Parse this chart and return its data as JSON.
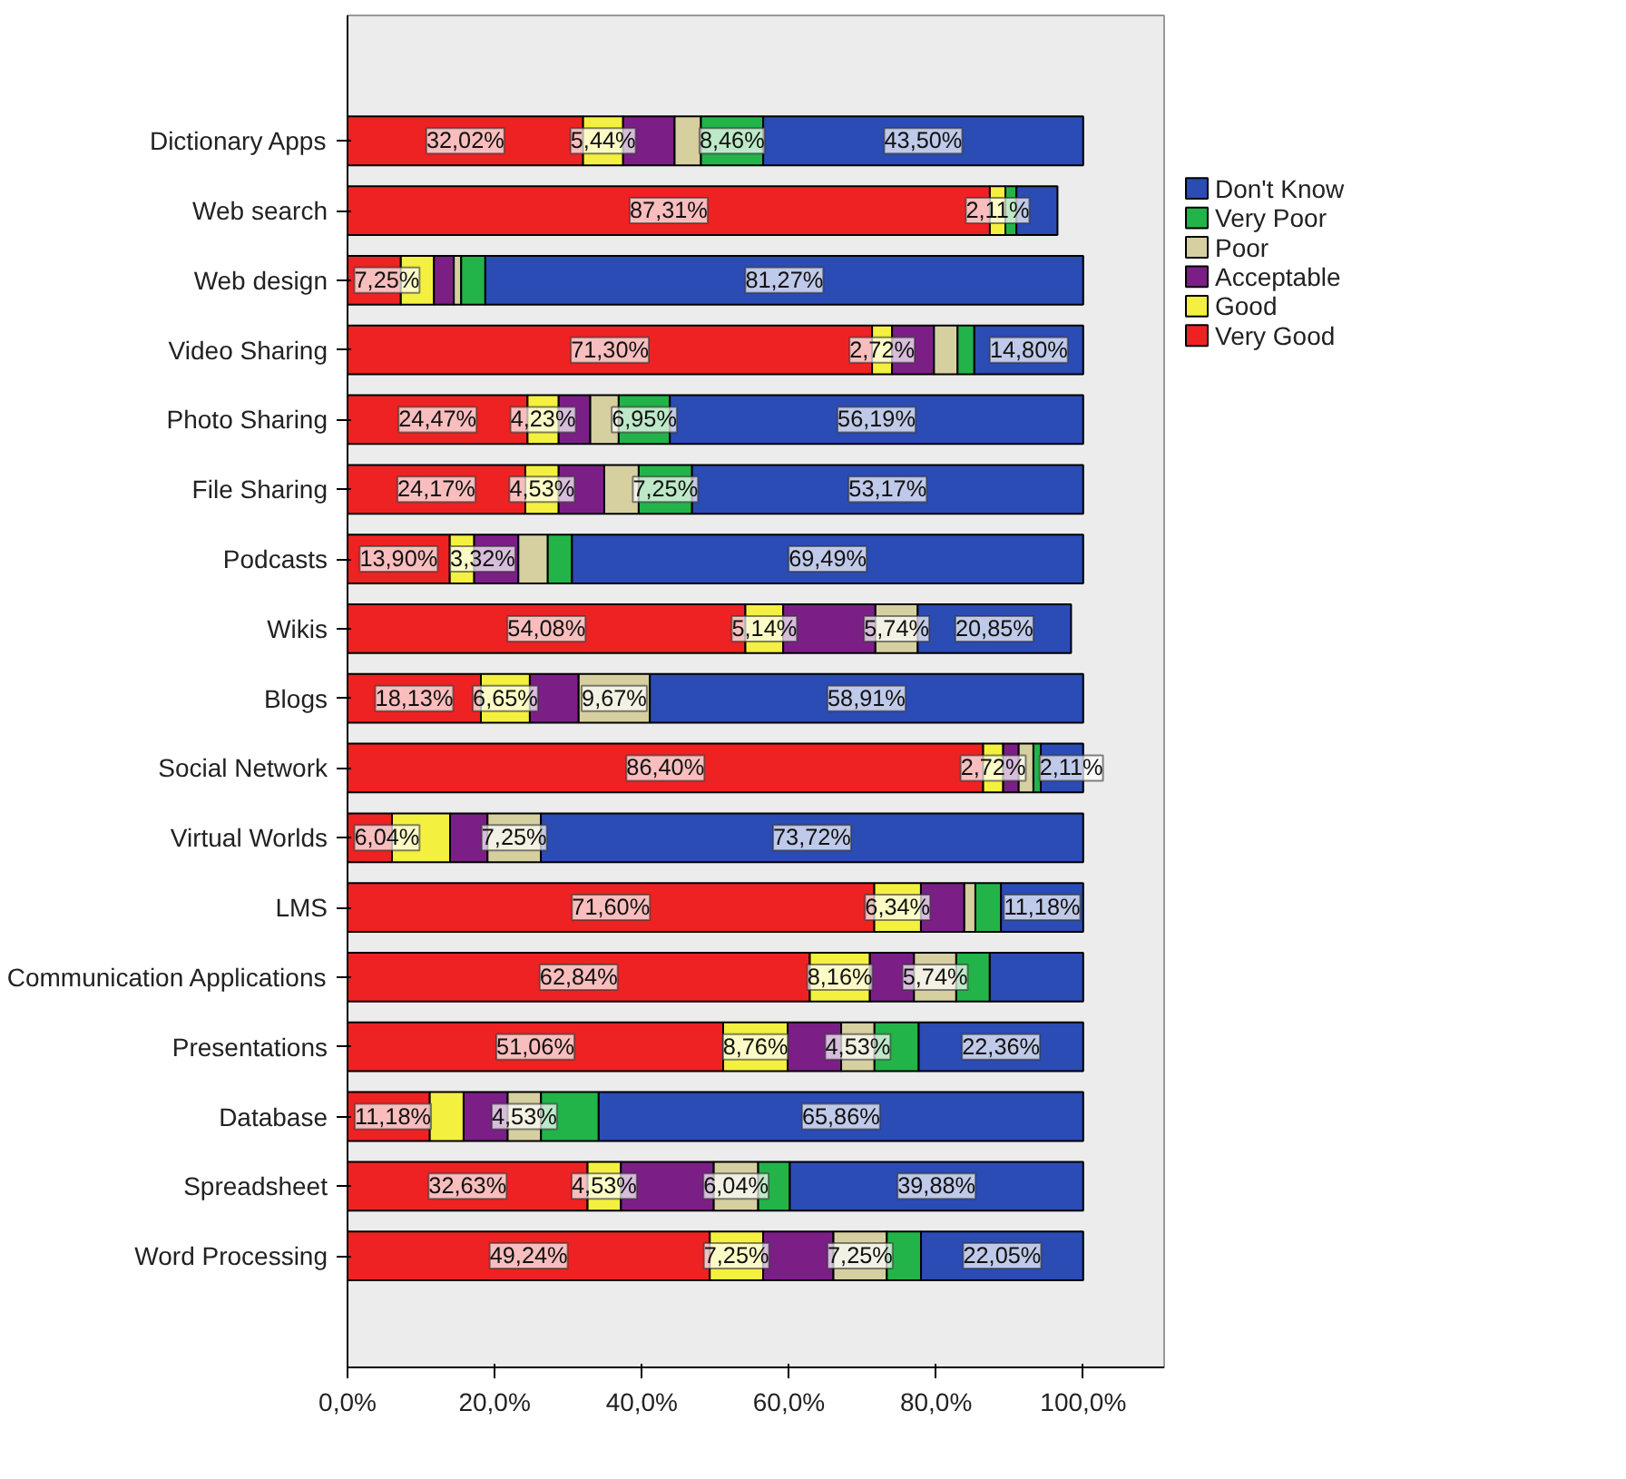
{
  "chart_data": {
    "type": "bar",
    "orientation": "horizontal",
    "stacked": true,
    "categories": [
      "Dictionary Apps",
      "Web search",
      "Web design",
      "Video Sharing",
      "Photo Sharing",
      "File Sharing",
      "Podcasts",
      "Wikis",
      "Blogs",
      "Social Network",
      "Virtual Worlds",
      "LMS",
      "Communication Applications",
      "Presentations",
      "Database",
      "Spreadsheet",
      "Word Processing"
    ],
    "series": [
      {
        "name": "Very Good",
        "color": "#ee2222",
        "values": [
          32.02,
          87.31,
          7.25,
          71.3,
          24.47,
          24.17,
          13.9,
          54.08,
          18.13,
          86.4,
          6.04,
          71.6,
          62.84,
          51.06,
          11.18,
          32.63,
          49.24
        ],
        "value_labels": [
          "32,02%",
          "87,31%",
          "7,25%",
          "71,30%",
          "24,47%",
          "24,17%",
          "13,90%",
          "54,08%",
          "18,13%",
          "86,40%",
          "6,04%",
          "71,60%",
          "62,84%",
          "51,06%",
          "11,18%",
          "32,63%",
          "49,24%"
        ]
      },
      {
        "name": "Good",
        "color": "#f4f040",
        "values": [
          5.44,
          2.11,
          4.5,
          2.72,
          4.23,
          4.53,
          3.32,
          5.14,
          6.65,
          2.72,
          7.9,
          6.34,
          8.16,
          8.76,
          4.6,
          4.53,
          7.25
        ],
        "value_labels": [
          "5,44%",
          "2,11%",
          null,
          "2,72%",
          "4,23%",
          "4,53%",
          "3,32%",
          "5,14%",
          "6,65%",
          "2,72%",
          null,
          "6,34%",
          "8,16%",
          "8,76%",
          null,
          "4,53%",
          "7,25%"
        ]
      },
      {
        "name": "Acceptable",
        "color": "#7b1f87",
        "values": [
          7.0,
          null,
          2.7,
          5.7,
          4.3,
          6.2,
          6.0,
          12.54,
          6.64,
          2.11,
          5.09,
          5.9,
          6.0,
          7.28,
          5.99,
          12.62,
          9.56
        ],
        "value_labels": [
          null,
          null,
          null,
          null,
          null,
          null,
          null,
          null,
          null,
          "2,11%",
          null,
          null,
          null,
          null,
          null,
          null,
          null
        ]
      },
      {
        "name": "Poor",
        "color": "#d6d0a0",
        "values": [
          3.58,
          null,
          1.0,
          3.2,
          3.86,
          4.68,
          4.0,
          5.74,
          9.67,
          2.0,
          7.25,
          1.5,
          5.74,
          4.53,
          4.53,
          6.04,
          7.25
        ],
        "value_labels": [
          null,
          null,
          null,
          null,
          null,
          null,
          null,
          "5,74%",
          "9,67%",
          null,
          "7,25%",
          null,
          "5,74%",
          "4,53%",
          "4,53%",
          "6,04%",
          "7,25%"
        ]
      },
      {
        "name": "Very Poor",
        "color": "#22b449",
        "values": [
          8.46,
          1.5,
          3.28,
          2.28,
          6.95,
          7.25,
          3.29,
          null,
          null,
          1.0,
          null,
          3.48,
          4.56,
          6.01,
          7.84,
          4.3,
          4.65
        ],
        "value_labels": [
          "8,46%",
          null,
          null,
          null,
          "6,95%",
          "7,25%",
          null,
          null,
          null,
          null,
          null,
          null,
          null,
          null,
          null,
          null,
          null
        ]
      },
      {
        "name": "Don't Know",
        "color": "#2b4bb5",
        "values": [
          43.5,
          5.58,
          81.27,
          14.8,
          56.19,
          53.17,
          69.49,
          20.85,
          58.91,
          5.77,
          73.72,
          11.18,
          12.7,
          22.36,
          65.86,
          39.88,
          22.05
        ],
        "value_labels": [
          "43,50%",
          null,
          "81,27%",
          "14,80%",
          "56,19%",
          "53,17%",
          "69,49%",
          "20,85%",
          "58,91%",
          null,
          "73,72%",
          "11,18%",
          null,
          "22,36%",
          "65,86%",
          "39,88%",
          "22,05%"
        ]
      }
    ],
    "xlim": [
      0,
      111
    ],
    "xticks": [
      {
        "value": 0,
        "label": "0,0%"
      },
      {
        "value": 20,
        "label": "20,0%"
      },
      {
        "value": 40,
        "label": "40,0%"
      },
      {
        "value": 60,
        "label": "60,0%"
      },
      {
        "value": 80,
        "label": "80,0%"
      },
      {
        "value": 100,
        "label": "100,0%"
      }
    ],
    "grid": false,
    "legend": "right"
  }
}
